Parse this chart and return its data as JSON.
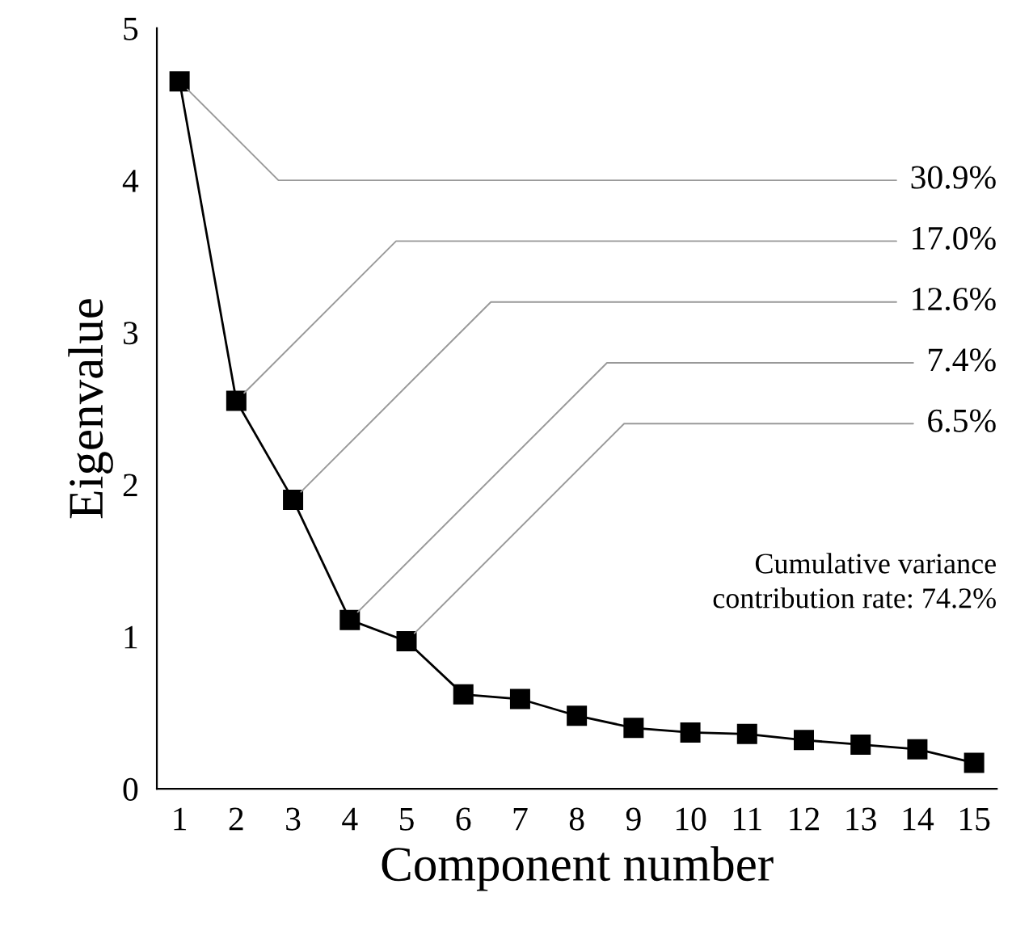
{
  "chart_data": {
    "type": "line",
    "xlabel": "Component number",
    "ylabel": "Eigenvalue",
    "x": [
      1,
      2,
      3,
      4,
      5,
      6,
      7,
      8,
      9,
      10,
      11,
      12,
      13,
      14,
      15
    ],
    "series": [
      {
        "color": "#000000",
        "values": [
          4.65,
          2.55,
          1.9,
          1.11,
          0.97,
          0.62,
          0.59,
          0.48,
          0.4,
          0.37,
          0.36,
          0.32,
          0.29,
          0.26,
          0.17
        ]
      }
    ],
    "xlim": [
      0.6,
      15.4
    ],
    "xticks": [
      1,
      2,
      3,
      4,
      5,
      6,
      7,
      8,
      9,
      10,
      11,
      12,
      13,
      14,
      15
    ],
    "ylim": [
      0,
      5
    ],
    "yticks": [
      0,
      1,
      2,
      3,
      4,
      5
    ],
    "marker": "square",
    "line_style": "solid",
    "grid": false,
    "legend": false,
    "annotations": [
      {
        "text": "30.9%",
        "x": 1,
        "y": 4.65
      },
      {
        "text": "17.0%",
        "x": 2,
        "y": 2.55
      },
      {
        "text": "12.6%",
        "x": 3,
        "y": 1.9
      },
      {
        "text": "7.4%",
        "x": 4,
        "y": 1.11
      },
      {
        "text": "6.5%",
        "x": 5,
        "y": 0.97
      },
      "Cumulative variance\ncontribution rate: 74.2%"
    ]
  }
}
